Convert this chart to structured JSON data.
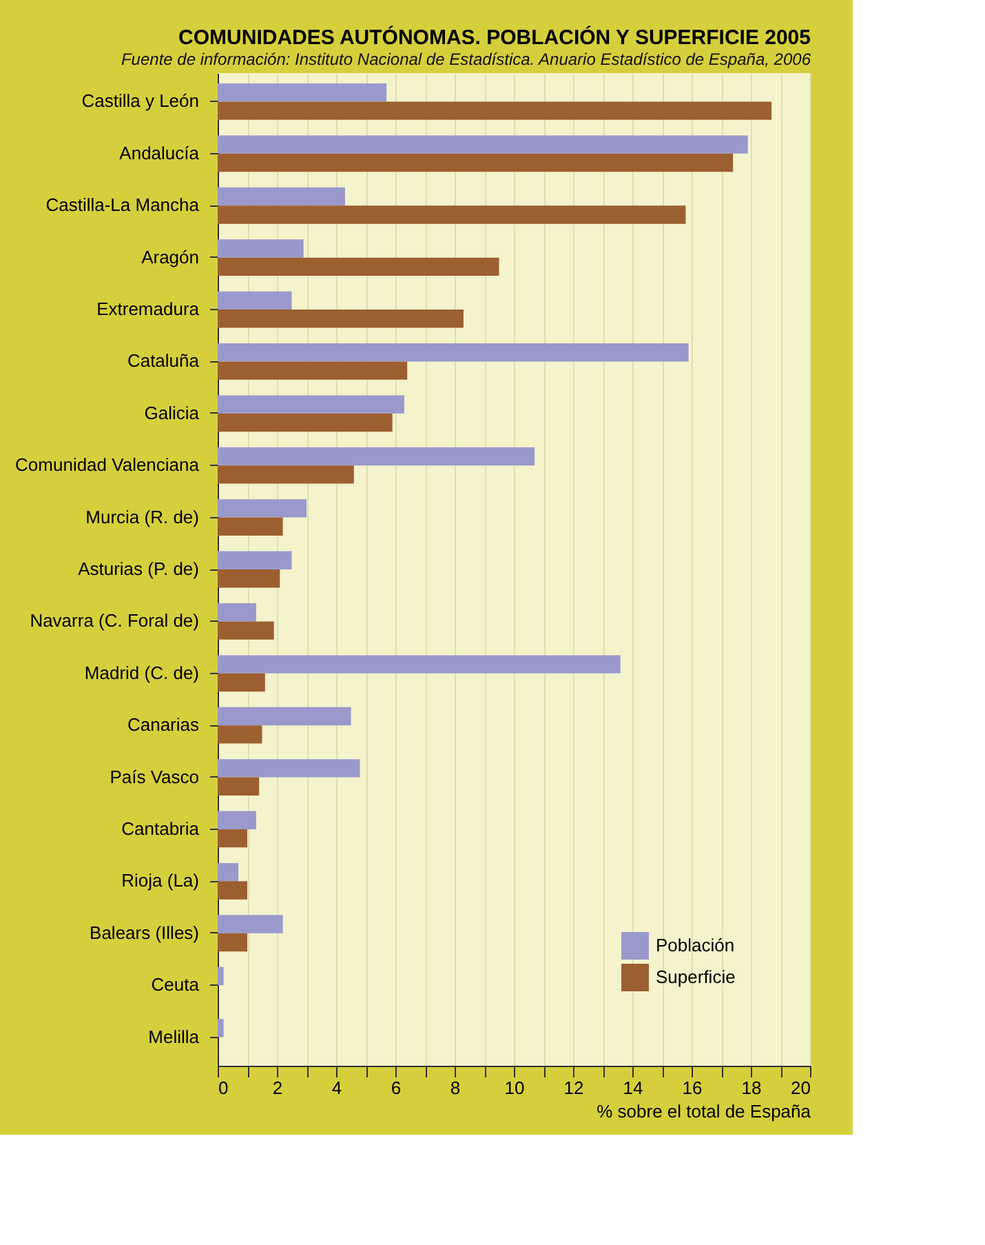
{
  "chart_data": {
    "type": "bar",
    "orientation": "horizontal",
    "title": "COMUNIDADES AUTÓNOMAS. POBLACIÓN Y SUPERFICIE 2005",
    "subtitle": "Fuente de información: Instituto Nacional de Estadística. Anuario Estadístico de España, 2006",
    "xlabel": "% sobre el total de España",
    "categories": [
      "Castilla y León",
      "Andalucía",
      "Castilla-La Mancha",
      "Aragón",
      "Extremadura",
      "Cataluña",
      "Galicia",
      "Comunidad Valenciana",
      "Murcia (R. de)",
      "Asturias (P. de)",
      "Navarra (C. Foral de)",
      "Madrid (C. de)",
      "Canarias",
      "País Vasco",
      "Cantabria",
      "Rioja (La)",
      "Balears (Illes)",
      "Ceuta",
      "Melilla"
    ],
    "series": [
      {
        "name": "Población",
        "color": "#9999cc",
        "values": [
          5.7,
          17.9,
          4.3,
          2.9,
          2.5,
          15.9,
          6.3,
          10.7,
          3.0,
          2.5,
          1.3,
          13.6,
          4.5,
          4.8,
          1.3,
          0.7,
          2.2,
          0.2,
          0.2
        ]
      },
      {
        "name": "Superficie",
        "color": "#9c5f30",
        "values": [
          18.7,
          17.4,
          15.8,
          9.5,
          8.3,
          6.4,
          5.9,
          4.6,
          2.2,
          2.1,
          1.9,
          1.6,
          1.5,
          1.4,
          1.0,
          1.0,
          1.0,
          null,
          null
        ]
      }
    ],
    "xlim": [
      0,
      20
    ],
    "xticks": [
      0,
      {
        "value": 1,
        "label": null
      },
      2,
      {
        "value": 3,
        "label": null
      },
      4,
      {
        "value": 5,
        "label": null
      },
      6,
      {
        "value": 7,
        "label": null
      },
      8,
      {
        "value": 9,
        "label": null
      },
      10,
      {
        "value": 11,
        "label": null
      },
      12,
      {
        "value": 13,
        "label": null
      },
      14,
      {
        "value": 15,
        "label": null
      },
      16,
      {
        "value": 17,
        "label": null
      },
      18,
      {
        "value": 19,
        "label": null
      },
      20
    ],
    "grid": "x",
    "legend": "bottom right"
  }
}
